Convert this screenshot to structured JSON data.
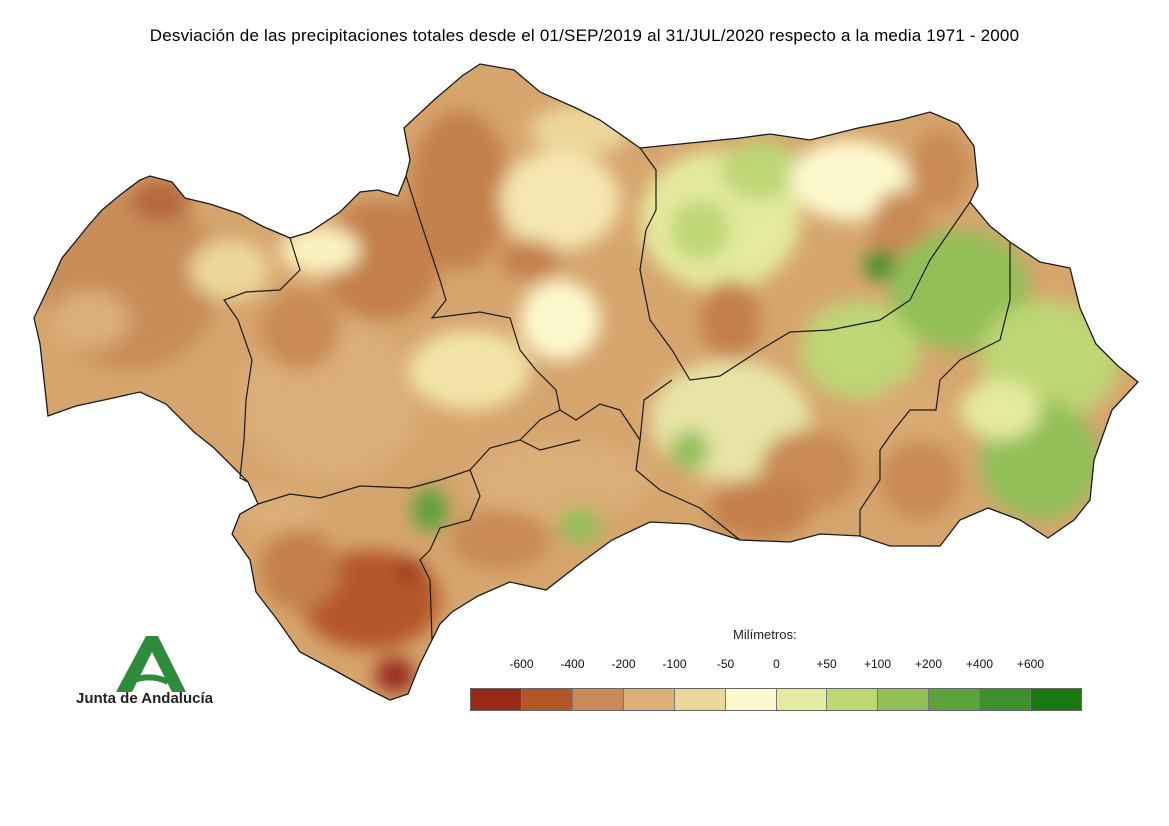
{
  "title": "Desviación de las precipitaciones totales desde el 01/SEP/2019 al 31/JUL/2020 respecto a la media 1971 - 2000",
  "legend": {
    "title": "Milímetros:",
    "labels": [
      "-600",
      "-400",
      "-200",
      "-100",
      "-50",
      "0",
      "+50",
      "+100",
      "+200",
      "+400",
      "+600"
    ],
    "colors": [
      "#992a1a",
      "#b5562a",
      "#c98a55",
      "#dcae78",
      "#ecd79a",
      "#fdf9cf",
      "#e4ea9e",
      "#bed674",
      "#93bf58",
      "#5da23a",
      "#3f8f2a",
      "#1a7a10"
    ]
  },
  "logo": {
    "text": "Junta de Andalucía",
    "color": "#2e8b3c"
  },
  "map": {
    "region": "Andalucía",
    "base_color": "#d9aa72",
    "border_color": "#1a1a1a"
  }
}
